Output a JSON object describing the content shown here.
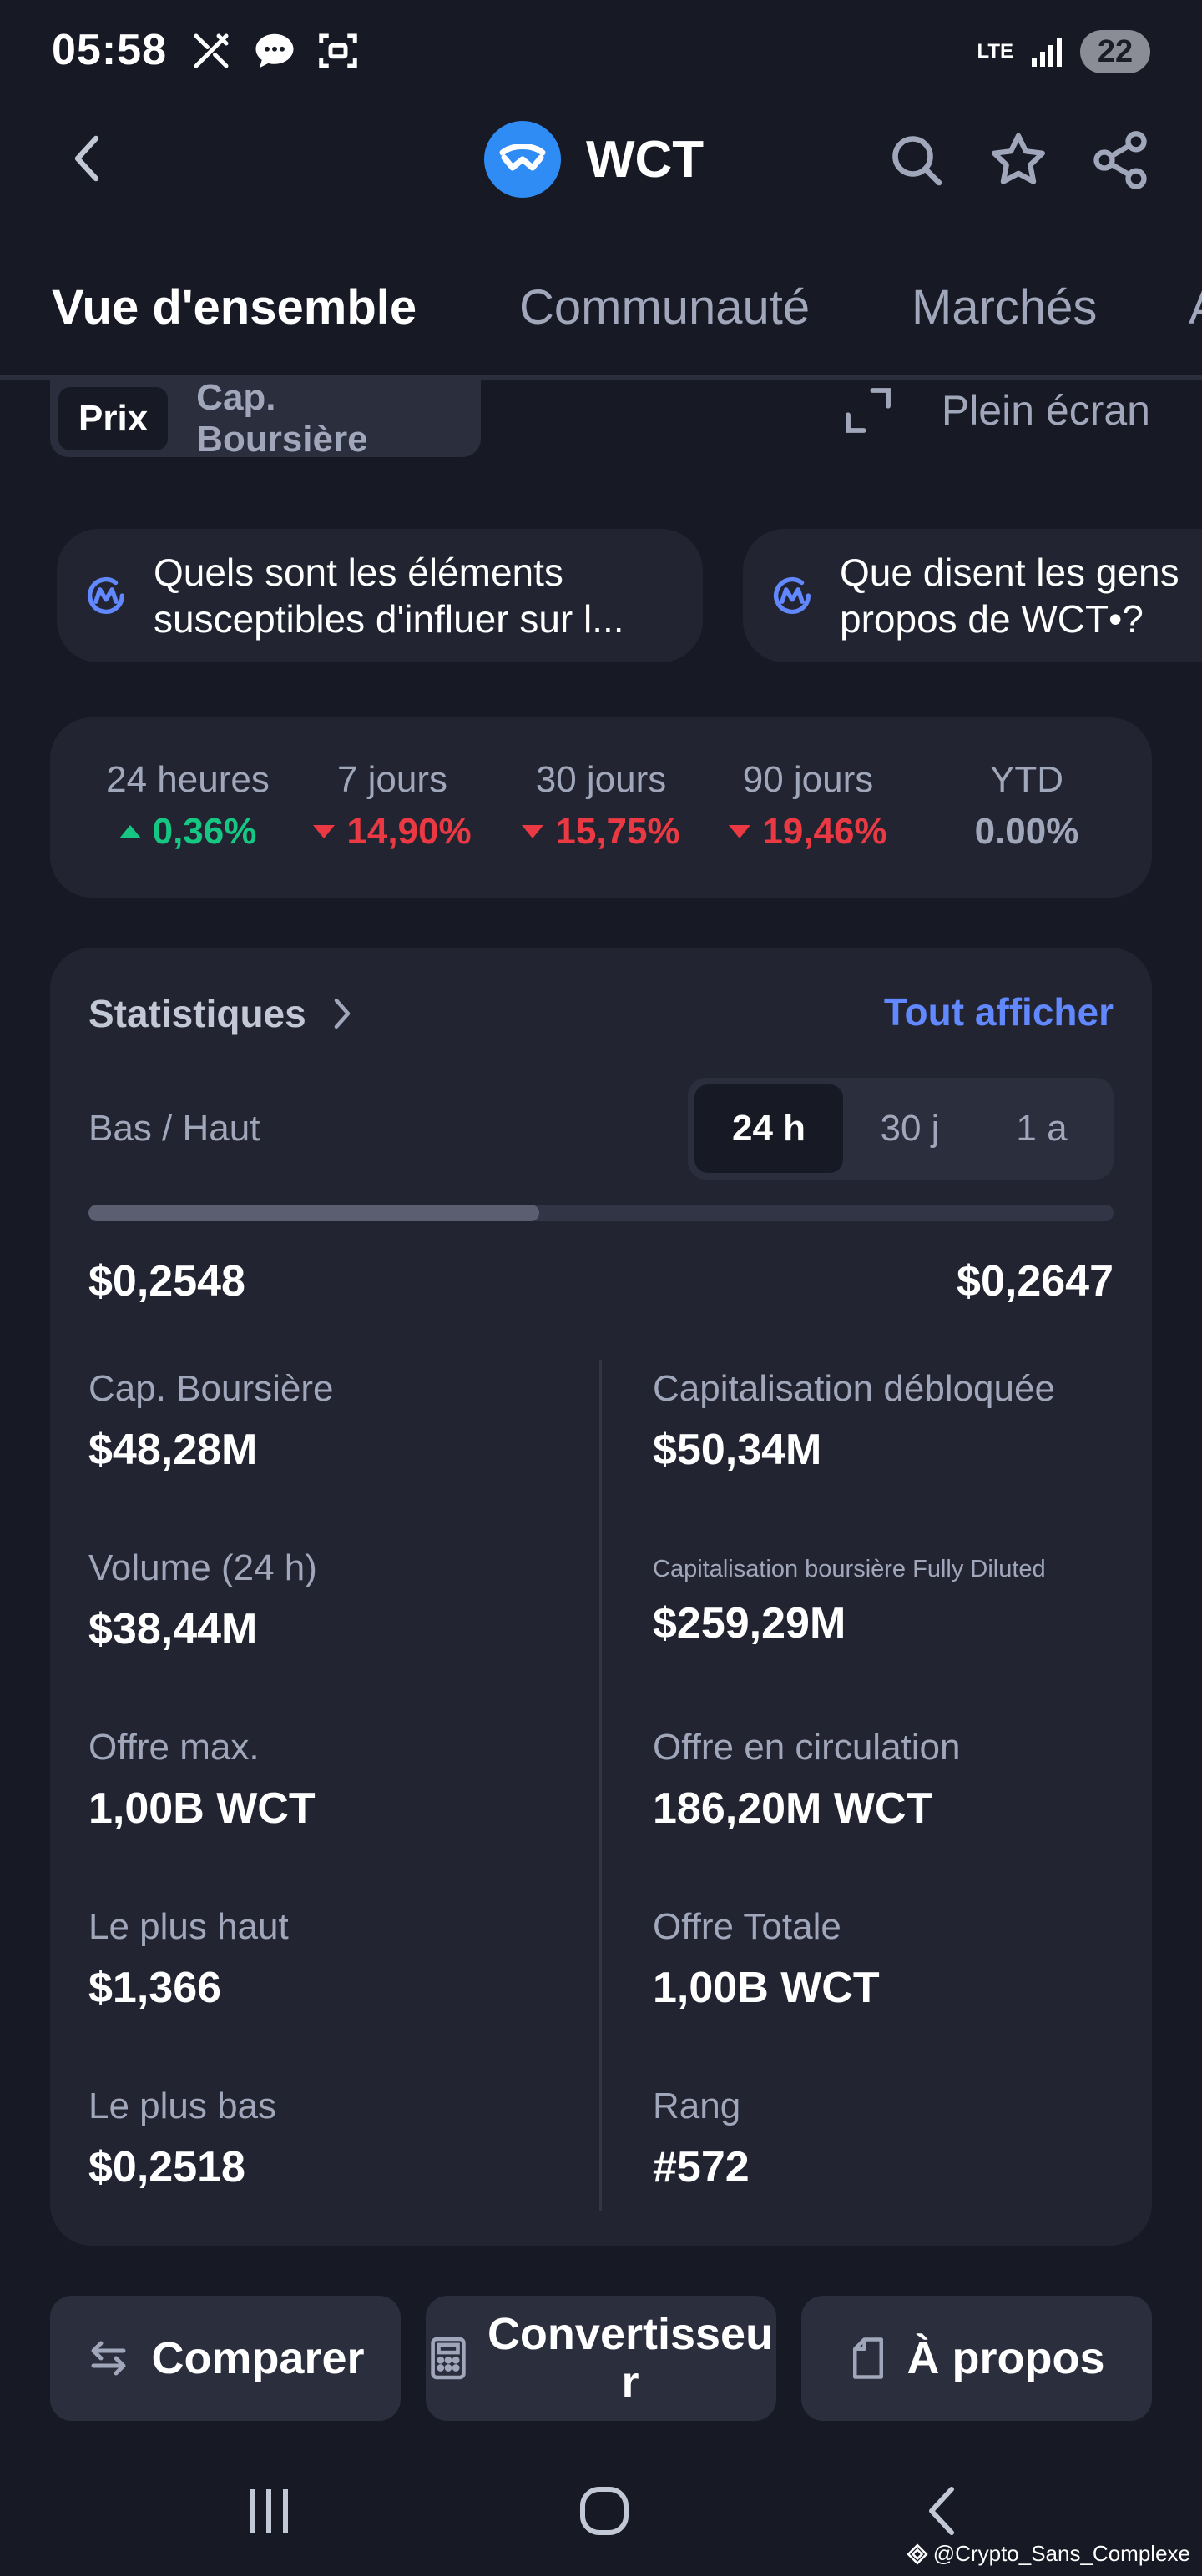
{
  "status_bar": {
    "time": "05:58",
    "network": "LTE",
    "battery": "22"
  },
  "header": {
    "coin_symbol": "WCT",
    "icons": [
      "back-icon",
      "search-icon",
      "star-icon",
      "share-icon"
    ]
  },
  "tabs": [
    {
      "label": "Vue d'ensemble",
      "active": true
    },
    {
      "label": "Communauté",
      "active": false
    },
    {
      "label": "Marchés",
      "active": false
    },
    {
      "label": "A",
      "active": false
    }
  ],
  "chart_toggle": {
    "options": [
      "Prix",
      "Cap. Boursière"
    ],
    "selected": "Prix",
    "fullscreen_label": "Plein écran"
  },
  "ai_chips": [
    {
      "line1": "Quels sont les éléments",
      "line2": "susceptibles d'influer sur l..."
    },
    {
      "line1": "Que disent les gens",
      "line2": "propos de WCT•?"
    }
  ],
  "performance": [
    {
      "label": "24 heures",
      "value": "0,36%",
      "direction": "up"
    },
    {
      "label": "7 jours",
      "value": "14,90%",
      "direction": "down"
    },
    {
      "label": "30 jours",
      "value": "15,75%",
      "direction": "down"
    },
    {
      "label": "90 jours",
      "value": "19,46%",
      "direction": "down"
    },
    {
      "label": "YTD",
      "value": "0.00%",
      "direction": "flat"
    }
  ],
  "statistics": {
    "title": "Statistiques",
    "see_all": "Tout afficher",
    "low_high_label": "Bas / Haut",
    "ranges": [
      "24 h",
      "30 j",
      "1 a"
    ],
    "selected_range": "24 h",
    "low": "$0,2548",
    "high": "$0,2647",
    "range_fill_fraction": 0.44,
    "left": [
      {
        "label": "Cap. Boursière",
        "value": "$48,28M"
      },
      {
        "label": "Volume (24 h)",
        "value": "$38,44M"
      },
      {
        "label": "Offre max.",
        "value": "1,00B WCT"
      },
      {
        "label": "Le plus haut",
        "value": "$1,366"
      },
      {
        "label": "Le plus bas",
        "value": "$0,2518"
      }
    ],
    "right": [
      {
        "label": "Capitalisation débloquée",
        "value": "$50,34M"
      },
      {
        "label": "Capitalisation boursière Fully Diluted",
        "value": "$259,29M"
      },
      {
        "label": "Offre en circulation",
        "value": "186,20M WCT"
      },
      {
        "label": "Offre Totale",
        "value": "1,00B WCT"
      },
      {
        "label": "Rang",
        "value": "#572"
      }
    ]
  },
  "actions": {
    "compare": "Comparer",
    "converter_line1": "Convertisseu",
    "converter_line2": "r",
    "about": "À propos"
  },
  "watermark": "@Crypto_Sans_Complexe",
  "colors": {
    "background": "#171924",
    "card": "#222531",
    "accent": "#3861fb",
    "link": "#6188ff",
    "positive": "#16c784",
    "negative": "#ea3943",
    "coin_brand": "#2f8cf5"
  }
}
